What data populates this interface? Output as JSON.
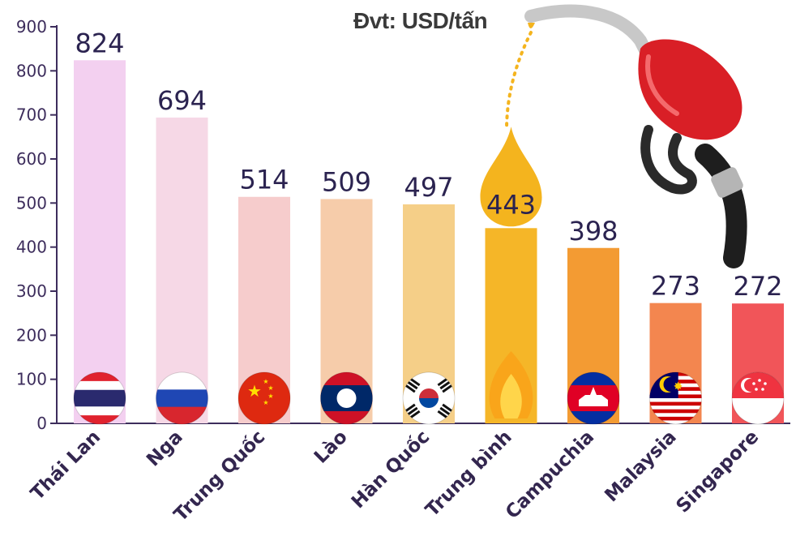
{
  "unit_label": "Đvt: USD/tấn",
  "colors": {
    "axis": "#3d2d5c",
    "labels": "#2b2350",
    "drop": "#f4b41e",
    "pump_red": "#d91f26"
  },
  "chart_data": {
    "type": "bar",
    "categories": [
      "Thái Lan",
      "Nga",
      "Trung Quốc",
      "Lào",
      "Hàn Quốc",
      "Trung bình",
      "Campuchia",
      "Malaysia",
      "Singapore"
    ],
    "values": [
      824,
      694,
      514,
      509,
      497,
      443,
      398,
      273,
      272
    ],
    "bar_colors": [
      "#f3d0f0",
      "#f6d8e6",
      "#f6cccc",
      "#f6ccaa",
      "#f5cf88",
      "#f5b628",
      "#f39b33",
      "#f3864f",
      "#f15559"
    ],
    "ylim": [
      0,
      900
    ],
    "yticks": [
      0,
      100,
      200,
      300,
      400,
      500,
      600,
      700,
      800,
      900
    ],
    "grid": false,
    "icons": [
      "thailand-flag-icon",
      "russia-flag-icon",
      "china-flag-icon",
      "laos-flag-icon",
      "south-korea-flag-icon",
      "flame-icon",
      "cambodia-flag-icon",
      "malaysia-flag-icon",
      "singapore-flag-icon"
    ]
  }
}
